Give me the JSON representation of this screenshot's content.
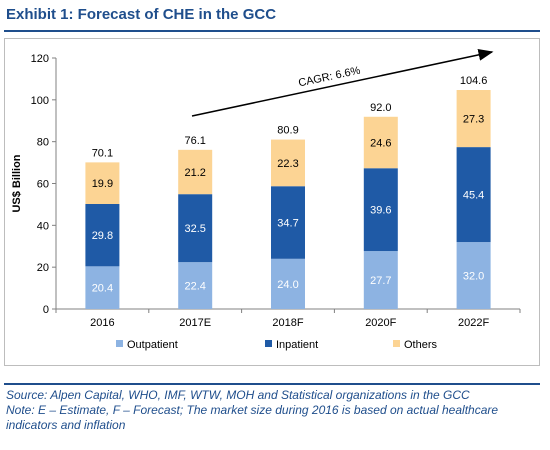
{
  "header": {
    "title": "Exhibit 1:  Forecast of CHE in the GCC"
  },
  "colors": {
    "Outpatient": "#8db3e2",
    "Inpatient": "#1f5aa6",
    "Others": "#fcd494",
    "accent": "#1f4e8c"
  },
  "chart_data": {
    "type": "bar",
    "stacked": true,
    "title": "",
    "xlabel": "",
    "ylabel": "US$ Billion",
    "ylim": [
      0,
      120
    ],
    "yticks": [
      0,
      20,
      40,
      60,
      80,
      100,
      120
    ],
    "categories": [
      "2016",
      "2017E",
      "2018F",
      "2020F",
      "2022F"
    ],
    "series": [
      {
        "name": "Outpatient",
        "values": [
          20.4,
          22.4,
          24.0,
          27.7,
          32.0
        ]
      },
      {
        "name": "Inpatient",
        "values": [
          29.8,
          32.5,
          34.7,
          39.6,
          45.4
        ]
      },
      {
        "name": "Others",
        "values": [
          19.9,
          21.2,
          22.3,
          24.6,
          27.3
        ]
      }
    ],
    "totals": [
      "70.1",
      "76.1",
      "80.9",
      "92.0",
      "104.6"
    ],
    "value_labels": [
      [
        "20.4",
        "22.4",
        "24.0",
        "27.7",
        "32.0"
      ],
      [
        "29.8",
        "32.5",
        "34.7",
        "39.6",
        "45.4"
      ],
      [
        "19.9",
        "21.2",
        "22.3",
        "24.6",
        "27.3"
      ]
    ],
    "annotation": "CAGR: 6.6%",
    "legend_position": "bottom",
    "grid": false
  },
  "footer": {
    "source_label": "Source:",
    "source_text": " Alpen Capital, WHO, IMF, WTW, MOH and Statistical organizations in the GCC",
    "note_label": "Note:",
    "note_text": "  E – Estimate, F – Forecast; The market size during 2016 is based on actual healthcare indicators and inflation"
  }
}
